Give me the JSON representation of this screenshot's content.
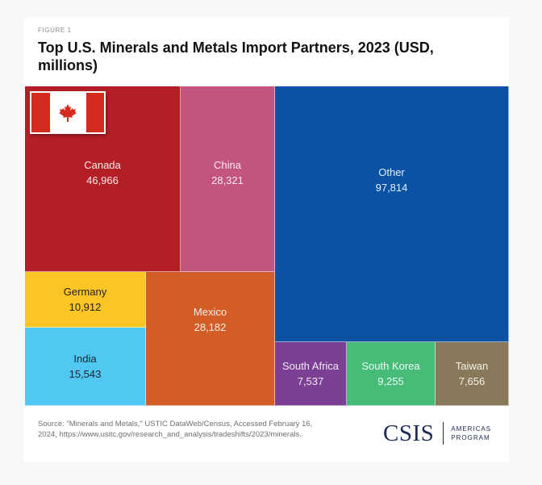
{
  "figure_label": "FIGURE 1",
  "title": "Top U.S. Minerals and Metals Import Partners, 2023 (USD, millions)",
  "source": "Source: \"Minerals and Metals,\" USTIC DataWeb/Census, Accessed February 16, 2024, https://www.usitc.gov/research_and_analysis/tradeshifts/2023/minerals.",
  "logo": {
    "name": "CSIS",
    "program_line1": "AMERICAS",
    "program_line2": "PROGRAM"
  },
  "flag_icon": "canada-flag-icon",
  "chart_data": {
    "type": "treemap",
    "title": "Top U.S. Minerals and Metals Import Partners, 2023 (USD, millions)",
    "unit": "USD, millions",
    "items": [
      {
        "name": "Canada",
        "value": 46966,
        "display": "46,966",
        "color": "#b41f26",
        "text_color": "#fde9e9"
      },
      {
        "name": "China",
        "value": 28321,
        "display": "28,321",
        "color": "#c2547f",
        "text_color": "#fbeaf1"
      },
      {
        "name": "Other",
        "value": 97814,
        "display": "97,814",
        "color": "#0b52a4",
        "text_color": "#e6eefb"
      },
      {
        "name": "Germany",
        "value": 10912,
        "display": "10,912",
        "color": "#fcc526",
        "text_color": "#222222"
      },
      {
        "name": "India",
        "value": 15543,
        "display": "15,543",
        "color": "#50c8f2",
        "text_color": "#1b2430"
      },
      {
        "name": "Mexico",
        "value": 28182,
        "display": "28,182",
        "color": "#d25d27",
        "text_color": "#fdeee5"
      },
      {
        "name": "South Africa",
        "value": 7537,
        "display": "7,537",
        "color": "#7b3f94",
        "text_color": "#f3e9f8"
      },
      {
        "name": "South Korea",
        "value": 9255,
        "display": "9,255",
        "color": "#47bc79",
        "text_color": "#eefaf2"
      },
      {
        "name": "Taiwan",
        "value": 7656,
        "display": "7,656",
        "color": "#87795a",
        "text_color": "#f6f2e8"
      }
    ]
  }
}
